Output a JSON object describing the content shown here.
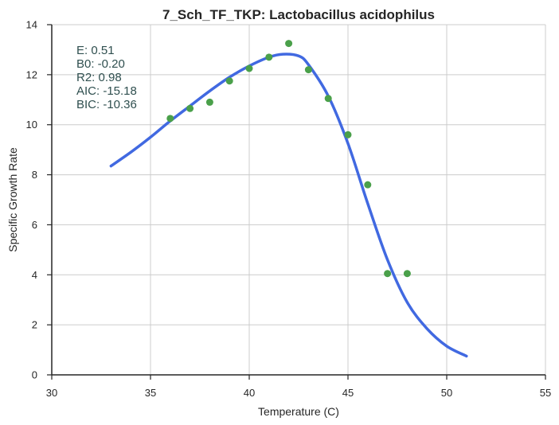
{
  "chart_data": {
    "type": "scatter",
    "title": "7_Sch_TF_TKP: Lactobacillus acidophilus",
    "xlabel": "Temperature (C)",
    "ylabel": "Specific Growth Rate",
    "xlim": [
      30,
      55
    ],
    "ylim": [
      0,
      14
    ],
    "xticks": [
      "30",
      "35",
      "40",
      "45",
      "50",
      "55"
    ],
    "yticks": [
      "0",
      "2",
      "4",
      "6",
      "8",
      "10",
      "12",
      "14"
    ],
    "grid": true,
    "annotations": [
      "E:  0.51",
      "B0:  -0.20",
      "R2:  0.98",
      "AIC: -15.18",
      "BIC: -10.36"
    ],
    "points": {
      "color": "#4aa04a",
      "x": [
        36,
        37,
        38,
        39,
        40,
        41,
        42,
        43,
        44,
        45,
        46,
        47,
        48
      ],
      "y": [
        10.25,
        10.65,
        10.9,
        11.75,
        12.25,
        12.7,
        13.25,
        12.2,
        11.05,
        9.6,
        7.6,
        4.05,
        4.05
      ]
    },
    "fit_line": {
      "color": "#4169e1",
      "x": [
        33,
        34,
        35,
        36,
        37,
        38,
        39,
        40,
        41,
        41.7,
        42.5,
        43,
        44,
        45,
        46,
        47,
        48,
        49,
        50,
        51
      ],
      "y": [
        8.35,
        8.9,
        9.5,
        10.15,
        10.75,
        11.35,
        11.9,
        12.35,
        12.7,
        12.82,
        12.75,
        12.4,
        11.15,
        9.25,
        6.85,
        4.6,
        2.9,
        1.85,
        1.15,
        0.75
      ]
    }
  }
}
